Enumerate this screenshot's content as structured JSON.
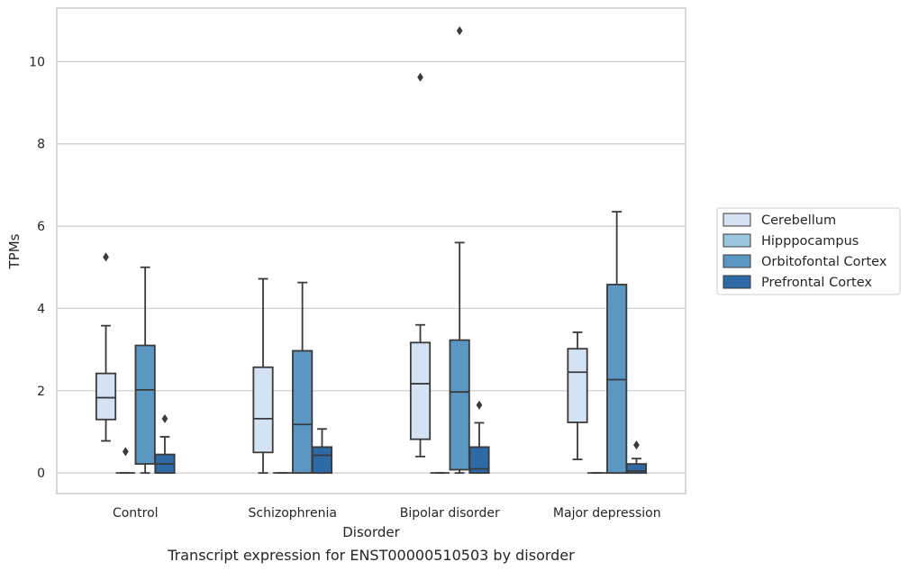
{
  "caption": "Transcript expression for ENST00000510503 by disorder",
  "chart_data": {
    "type": "box",
    "xlabel": "Disorder",
    "ylabel": "TPMs",
    "ylim": [
      -0.5,
      11.3
    ],
    "yticks": [
      0,
      2,
      4,
      6,
      8,
      10
    ],
    "grid": true,
    "legend_position": "center-right",
    "categories": [
      "Control",
      "Schizophrenia",
      "Bipolar disorder",
      "Major depression"
    ],
    "series": [
      {
        "name": "Cerebellum",
        "color": "#d4e3f3",
        "boxes": [
          {
            "whislo": 0.78,
            "q1": 1.3,
            "med": 1.83,
            "q3": 2.42,
            "whishi": 3.58,
            "fliers": [
              5.25
            ]
          },
          {
            "whislo": 0.0,
            "q1": 0.5,
            "med": 1.32,
            "q3": 2.57,
            "whishi": 4.72,
            "fliers": []
          },
          {
            "whislo": 0.4,
            "q1": 0.82,
            "med": 2.17,
            "q3": 3.17,
            "whishi": 3.6,
            "fliers": [
              9.62
            ]
          },
          {
            "whislo": 0.33,
            "q1": 1.23,
            "med": 2.45,
            "q3": 3.02,
            "whishi": 3.42,
            "fliers": []
          }
        ]
      },
      {
        "name": "Hipppocampus",
        "color": "#9ac6df",
        "boxes": [
          {
            "whislo": 0.0,
            "q1": 0.0,
            "med": 0.0,
            "q3": 0.0,
            "whishi": 0.0,
            "fliers": [
              0.52
            ]
          },
          {
            "whislo": 0.0,
            "q1": 0.0,
            "med": 0.0,
            "q3": 0.0,
            "whishi": 0.0,
            "fliers": []
          },
          {
            "whislo": 0.0,
            "q1": 0.0,
            "med": 0.0,
            "q3": 0.0,
            "whishi": 0.0,
            "fliers": []
          },
          {
            "whislo": 0.0,
            "q1": 0.0,
            "med": 0.0,
            "q3": 0.0,
            "whishi": 0.0,
            "fliers": []
          }
        ]
      },
      {
        "name": "Orbitofontal Cortex",
        "color": "#5a97c3",
        "boxes": [
          {
            "whislo": 0.0,
            "q1": 0.22,
            "med": 2.02,
            "q3": 3.1,
            "whishi": 5.0,
            "fliers": []
          },
          {
            "whislo": 0.0,
            "q1": 0.0,
            "med": 1.18,
            "q3": 2.97,
            "whishi": 4.63,
            "fliers": []
          },
          {
            "whislo": 0.0,
            "q1": 0.08,
            "med": 1.97,
            "q3": 3.23,
            "whishi": 5.6,
            "fliers": [
              10.75
            ]
          },
          {
            "whislo": 0.0,
            "q1": 0.0,
            "med": 2.27,
            "q3": 4.58,
            "whishi": 6.35,
            "fliers": []
          }
        ]
      },
      {
        "name": "Prefrontal Cortex",
        "color": "#2e6aa6",
        "boxes": [
          {
            "whislo": 0.0,
            "q1": 0.0,
            "med": 0.22,
            "q3": 0.45,
            "whishi": 0.88,
            "fliers": [
              1.32
            ]
          },
          {
            "whislo": 0.0,
            "q1": 0.0,
            "med": 0.43,
            "q3": 0.63,
            "whishi": 1.07,
            "fliers": []
          },
          {
            "whislo": 0.0,
            "q1": 0.0,
            "med": 0.1,
            "q3": 0.63,
            "whishi": 1.22,
            "fliers": [
              1.65
            ]
          },
          {
            "whislo": 0.0,
            "q1": 0.0,
            "med": 0.05,
            "q3": 0.22,
            "whishi": 0.35,
            "fliers": [
              0.68
            ]
          }
        ]
      }
    ]
  }
}
